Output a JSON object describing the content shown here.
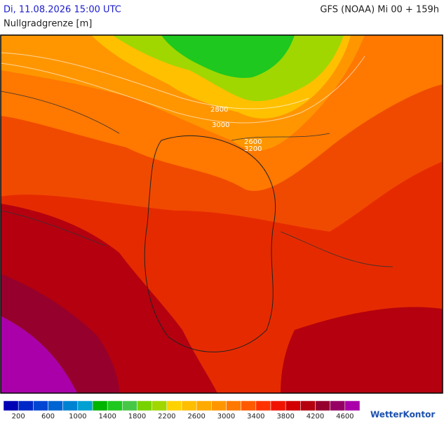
{
  "header": {
    "datetime": "Di, 11.08.2026 15:00 UTC",
    "model": "GFS (NOAA) Mi 00 + 159h",
    "parameter": "Nullgradgrenze [m]"
  },
  "map": {
    "contour_labels": [
      "3000",
      "2600",
      "3200",
      "2800"
    ]
  },
  "legend": {
    "colors": [
      "#0000b4",
      "#0028c8",
      "#0046d2",
      "#0064d2",
      "#0082d2",
      "#00a0d2",
      "#00b400",
      "#1ec81e",
      "#46c846",
      "#78d200",
      "#a0d700",
      "#ffd200",
      "#ffbe00",
      "#ffaa00",
      "#ff9600",
      "#ff7800",
      "#ff5a00",
      "#ff3200",
      "#f01400",
      "#d20000",
      "#b4000f",
      "#96002d",
      "#960064",
      "#aa00aa"
    ],
    "labels": [
      "200",
      "600",
      "1000",
      "1400",
      "1800",
      "2200",
      "2600",
      "3000",
      "3400",
      "3800",
      "4200",
      "4600"
    ]
  },
  "logo": "WetterKontor"
}
